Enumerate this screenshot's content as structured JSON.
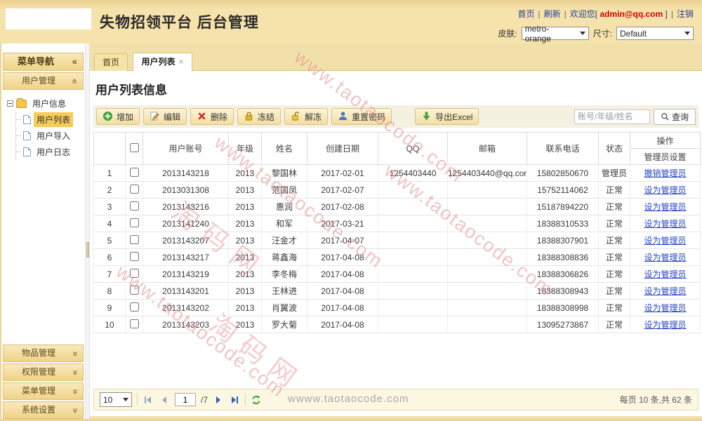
{
  "header": {
    "title": "失物招领平台 后台管理",
    "nav_home": "首页",
    "nav_refresh": "刷新",
    "separator": "|",
    "welcome_prefix": "欢迎您[",
    "welcome_user": "admin@qq.com",
    "welcome_suffix": "]",
    "logout": "注销",
    "skin_label": "皮肤:",
    "skin_value": "metro-orange",
    "size_label": "尺寸:",
    "size_value": "Default"
  },
  "icons": {
    "chevron": "«",
    "close": "×"
  },
  "sidebar": {
    "title": "菜单导航",
    "top_panel": "用户管理",
    "tree": {
      "root": "用户信息",
      "children": [
        "用户列表",
        "用户导入",
        "用户日志"
      ],
      "selected": "用户列表"
    },
    "collapsed_panels": [
      "物品管理",
      "权限管理",
      "菜单管理",
      "系统设置"
    ]
  },
  "tabs": [
    {
      "label": "首页",
      "active": false,
      "closable": false
    },
    {
      "label": "用户列表",
      "active": true,
      "closable": true
    }
  ],
  "page": {
    "title": "用户列表信息"
  },
  "toolbar": {
    "buttons": [
      {
        "label": "增加",
        "icon": "add-icon"
      },
      {
        "label": "编辑",
        "icon": "edit-icon"
      },
      {
        "label": "删除",
        "icon": "delete-icon"
      },
      {
        "label": "冻结",
        "icon": "lock-icon"
      },
      {
        "label": "解冻",
        "icon": "unlock-icon"
      },
      {
        "label": "重置密码",
        "icon": "reset-password-icon"
      },
      {
        "label": "导出Excel",
        "icon": "export-excel-icon",
        "gap": true
      }
    ],
    "search_placeholder": "账号/年级/姓名",
    "search_button": "查询"
  },
  "table": {
    "headers": [
      "用户账号",
      "年级",
      "姓名",
      "创建日期",
      "QQ",
      "邮箱",
      "联系电话",
      "状态"
    ],
    "op_header": "操作",
    "op_subheader": "管理员设置",
    "rows": [
      {
        "num": "1",
        "account": "2013143218",
        "grade": "2013",
        "name": "黎国林",
        "created": "2017-02-01",
        "qq": "1254403440",
        "email": "1254403440@qq.com",
        "phone": "15802850670",
        "status": "管理员",
        "op": "撤销管理员"
      },
      {
        "num": "2",
        "account": "2013031308",
        "grade": "2013",
        "name": "范国凤",
        "created": "2017-02-07",
        "qq": "",
        "email": "",
        "phone": "15752114062",
        "status": "正常",
        "op": "设为管理员"
      },
      {
        "num": "3",
        "account": "2013143216",
        "grade": "2013",
        "name": "惠润",
        "created": "2017-02-08",
        "qq": "",
        "email": "",
        "phone": "15187894220",
        "status": "正常",
        "op": "设为管理员"
      },
      {
        "num": "4",
        "account": "2013141240",
        "grade": "2013",
        "name": "和军",
        "created": "2017-03-21",
        "qq": "",
        "email": "",
        "phone": "18388310533",
        "status": "正常",
        "op": "设为管理员"
      },
      {
        "num": "5",
        "account": "2013143207",
        "grade": "2013",
        "name": "汪金才",
        "created": "2017-04-07",
        "qq": "",
        "email": "",
        "phone": "18388307901",
        "status": "正常",
        "op": "设为管理员"
      },
      {
        "num": "6",
        "account": "2013143217",
        "grade": "2013",
        "name": "蒋鑫海",
        "created": "2017-04-08",
        "qq": "",
        "email": "",
        "phone": "18388308836",
        "status": "正常",
        "op": "设为管理员"
      },
      {
        "num": "7",
        "account": "2013143219",
        "grade": "2013",
        "name": "李冬梅",
        "created": "2017-04-08",
        "qq": "",
        "email": "",
        "phone": "18388306826",
        "status": "正常",
        "op": "设为管理员"
      },
      {
        "num": "8",
        "account": "2013143201",
        "grade": "2013",
        "name": "王林进",
        "created": "2017-04-08",
        "qq": "",
        "email": "",
        "phone": "18388308943",
        "status": "正常",
        "op": "设为管理员"
      },
      {
        "num": "9",
        "account": "2013143202",
        "grade": "2013",
        "name": "肖翼波",
        "created": "2017-04-08",
        "qq": "",
        "email": "",
        "phone": "18388308998",
        "status": "正常",
        "op": "设为管理员"
      },
      {
        "num": "10",
        "account": "2013143203",
        "grade": "2013",
        "name": "罗大菊",
        "created": "2017-04-08",
        "qq": "",
        "email": "",
        "phone": "13095273867",
        "status": "正常",
        "op": "设为管理员"
      }
    ]
  },
  "pager": {
    "page_size": "10",
    "current_page": "1",
    "total_pages_label": "/7",
    "summary": "每页 10 条,共 62 条"
  },
  "watermarks": {
    "diagonal_text": "www.taotaocode.com",
    "brand_text": "淘码网",
    "bottom_text": "wwww.taotaocode.com"
  },
  "colors": {
    "accent_tan": "#f2e0ab",
    "panel_border": "#d9bf7b",
    "selected_node": "#f6cc56",
    "link_blue": "#2946c5",
    "user_red": "#d30000"
  }
}
